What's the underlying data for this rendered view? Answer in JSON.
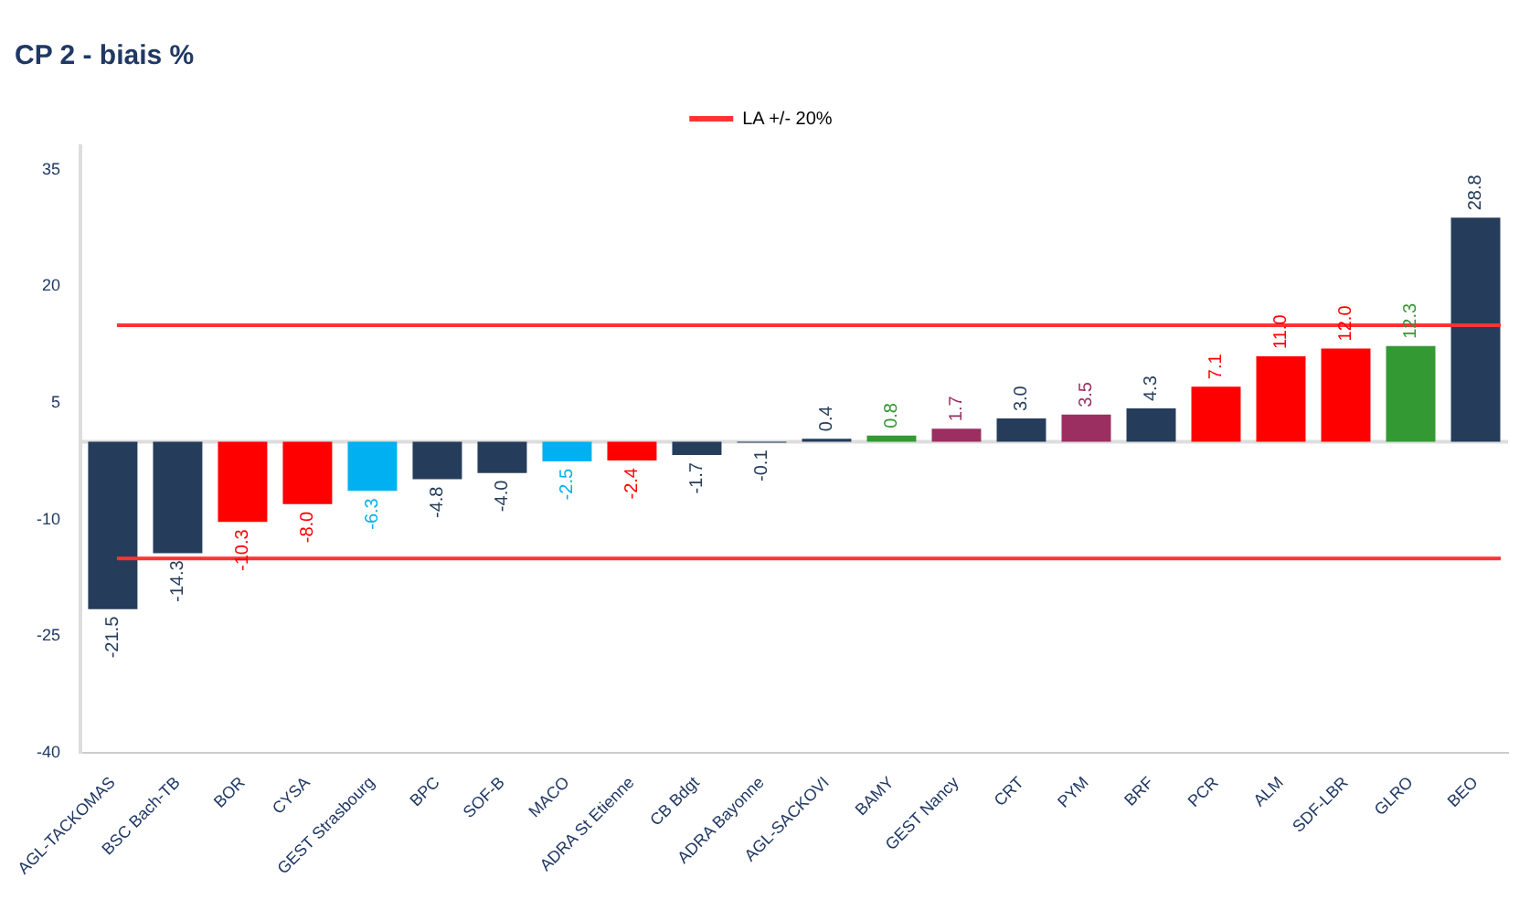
{
  "chart_data": {
    "type": "bar",
    "title": "CP 2 - biais %",
    "categories": [
      "AGL-TACKOMAS",
      "BSC Bach-TB",
      "BOR",
      "CYSA",
      "GEST Strasbourg",
      "BPC",
      "SOF-B",
      "MACO",
      "ADRA St Etienne",
      "CB Bdgt",
      "ADRA Bayonne",
      "AGL-SACKOVI",
      "BAMY",
      "GEST Nancy",
      "CRT",
      "PYM",
      "BRF",
      "PCR",
      "ALM",
      "SDF-LBR",
      "GLRO",
      "BEO"
    ],
    "values": [
      -21.5,
      -14.3,
      -10.3,
      -8.0,
      -6.3,
      -4.8,
      -4.0,
      -2.5,
      -2.4,
      -1.7,
      -0.1,
      0.4,
      0.8,
      1.7,
      3.0,
      3.5,
      4.3,
      7.1,
      11.0,
      12.0,
      12.3,
      28.8
    ],
    "colors": [
      "#253d5b",
      "#253d5b",
      "#ff0000",
      "#ff0000",
      "#00b0f0",
      "#253d5b",
      "#253d5b",
      "#00b0f0",
      "#ff0000",
      "#253d5b",
      "#253d5b",
      "#253d5b",
      "#339933",
      "#9b2f62",
      "#253d5b",
      "#9b2f62",
      "#253d5b",
      "#ff0000",
      "#ff0000",
      "#ff0000",
      "#339933",
      "#253d5b"
    ],
    "ylim": [
      -40,
      38
    ],
    "yticks": [
      -40,
      -25,
      -10,
      5,
      20,
      35
    ],
    "ref_lines": [
      {
        "axis": "y",
        "value": 15,
        "label": "LA +/- 20%",
        "color": "#ff3333"
      },
      {
        "axis": "y",
        "value": -15,
        "color": "#ff3333"
      }
    ],
    "value_labels": [
      "-21.5",
      "-14.3",
      "-10.3",
      "-8.0",
      "-6.3",
      "-4.8",
      "-4.0",
      "-2.5",
      "-2.4",
      "-1.7",
      "-0.1",
      "0.4",
      "0.8",
      "1.7",
      "3.0",
      "3.5",
      "4.3",
      "7.1",
      "11.0",
      "12.0",
      "12.3",
      "28.8"
    ],
    "grid": false,
    "legend": "top"
  }
}
